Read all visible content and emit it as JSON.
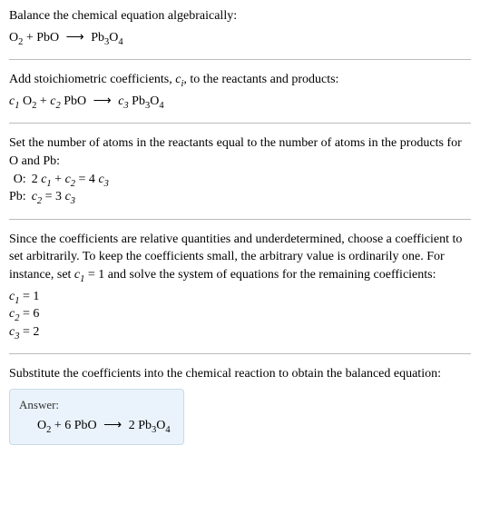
{
  "intro": {
    "line1": "Balance the chemical equation algebraically:",
    "eq_o2": "O",
    "eq_plus": " + PbO ",
    "arrow": "⟶",
    "eq_prod": " Pb",
    "sub2": "2",
    "sub3": "3",
    "sub4": "4"
  },
  "stoich": {
    "text": "Add stoichiometric coefficients, ",
    "ci": "c",
    "ci_sub": "i",
    "text2": ", to the reactants and products:",
    "c1": "c",
    "s1": "1",
    "o2": " O",
    "plus": " + ",
    "c2": "c",
    "s2": "2",
    "pbo": " PbO ",
    "arrow": "⟶",
    "c3": " c",
    "s3": "3",
    "pb3o4": " Pb"
  },
  "atoms": {
    "text": "Set the number of atoms in the reactants equal to the number of atoms in the products for O and Pb:",
    "o_label": "O:",
    "o_eq_a": "2 ",
    "o_eq_c1": "c",
    "o_eq_s1": "1",
    "o_eq_b": " + ",
    "o_eq_c2": "c",
    "o_eq_s2": "2",
    "o_eq_c": " = 4 ",
    "o_eq_c3": "c",
    "o_eq_s3": "3",
    "pb_label": "Pb:",
    "pb_eq_c2": "c",
    "pb_eq_s2": "2",
    "pb_eq_mid": " = 3 ",
    "pb_eq_c3": "c",
    "pb_eq_s3": "3"
  },
  "choose": {
    "text": "Since the coefficients are relative quantities and underdetermined, choose a coefficient to set arbitrarily. To keep the coefficients small, the arbitrary value is ordinarily one. For instance, set ",
    "c1": "c",
    "s1": "1",
    "text2": " = 1 and solve the system of equations for the remaining coefficients:",
    "r1a": "c",
    "r1s": "1",
    "r1b": " = 1",
    "r2a": "c",
    "r2s": "2",
    "r2b": " = 6",
    "r3a": "c",
    "r3s": "3",
    "r3b": " = 2"
  },
  "final": {
    "text": "Substitute the coefficients into the chemical reaction to obtain the balanced equation:",
    "answer_label": "Answer:",
    "eq_a": "O",
    "eq_s2": "2",
    "eq_b": " + 6 PbO ",
    "arrow": "⟶",
    "eq_c": " 2 Pb",
    "eq_s3": "3",
    "eq_d": "O",
    "eq_s4": "4"
  }
}
